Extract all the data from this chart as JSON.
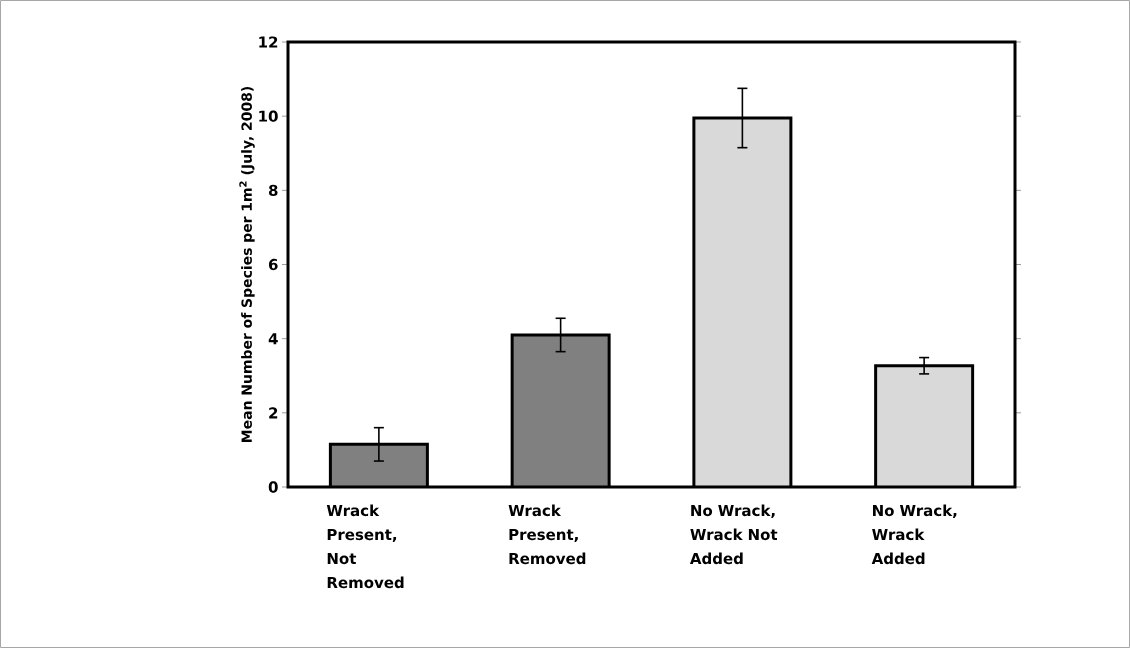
{
  "chart_data": {
    "type": "bar",
    "ylabel": "Mean Number of Species per 1m$^{2}$ (July, 2008)",
    "categories": [
      "Wrack Present, Not Removed",
      "Wrack Present, Removed",
      "No Wrack, Wrack Not Added",
      "No Wrack, Wrack Added"
    ],
    "values": [
      1.15,
      4.1,
      9.95,
      3.27
    ],
    "errors": [
      0.45,
      0.45,
      0.8,
      0.22
    ],
    "colors": [
      "#808080",
      "#808080",
      "#d9d9d9",
      "#d9d9d9"
    ],
    "ylim": [
      0,
      12
    ],
    "yticks": [
      0,
      2,
      4,
      6,
      8,
      10,
      12
    ],
    "grid": false
  }
}
